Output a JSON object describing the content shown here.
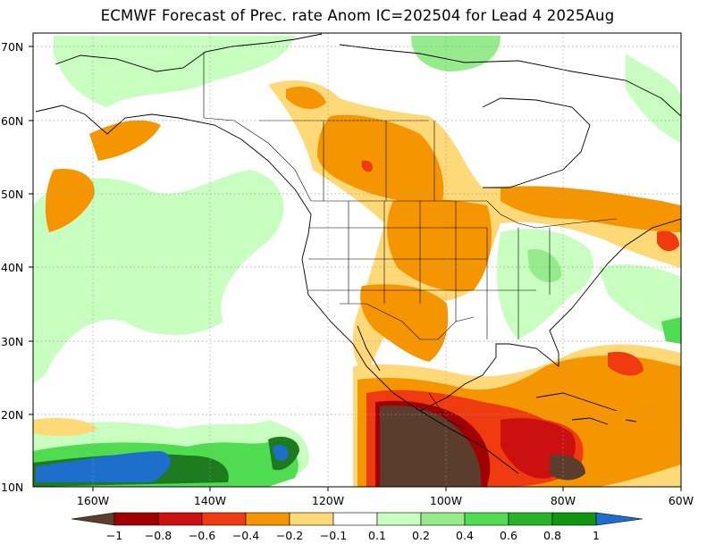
{
  "title": "ECMWF Forecast of Prec. rate Anom IC=202504 for Lead 4 2025Aug",
  "map": {
    "lat_labels": [
      "70N",
      "60N",
      "50N",
      "40N",
      "30N",
      "20N",
      "10N"
    ],
    "lon_labels": [
      "160W",
      "140W",
      "120W",
      "100W",
      "80W",
      "60W"
    ]
  },
  "colorbar": {
    "colors": [
      "#5c3c2c",
      "#a00000",
      "#cc1010",
      "#f03a10",
      "#f59600",
      "#ffd878",
      "#ffffff",
      "#c8ffc0",
      "#96ec8c",
      "#50dc50",
      "#28b428",
      "#109610",
      "#1e6ecc"
    ],
    "labels": [
      "−1",
      "−0.8",
      "−0.6",
      "−0.4",
      "−0.2",
      "−0.1",
      "0.1",
      "0.2",
      "0.4",
      "0.6",
      "0.8",
      "1"
    ]
  }
}
